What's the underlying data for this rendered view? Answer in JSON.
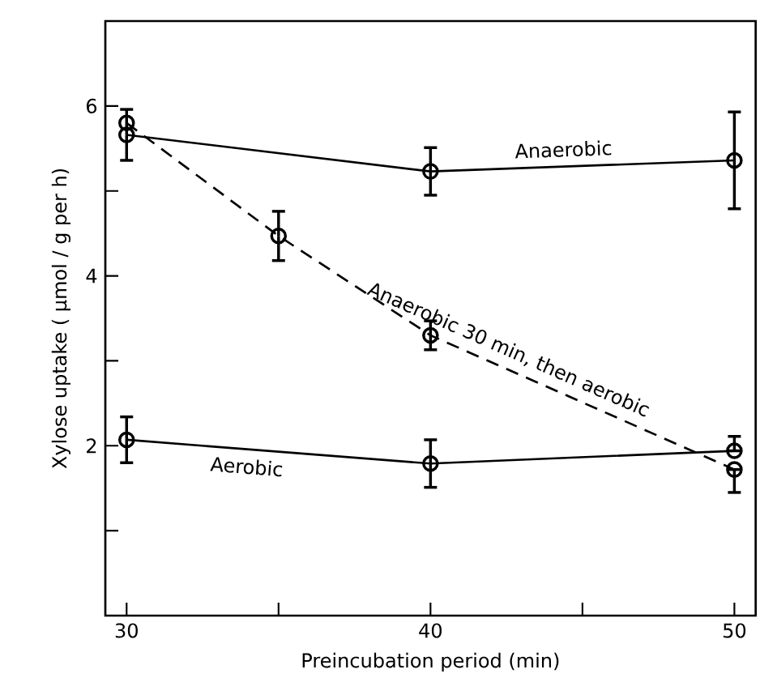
{
  "chart_data": {
    "type": "line",
    "xlabel": "Preincubation period (min)",
    "ylabel": "Xylose uptake ( μmol / g per h)",
    "x": [
      30,
      40,
      50
    ],
    "series": [
      {
        "name": "Anaerobic",
        "color": "#000000",
        "values": [
          5.66,
          5.23,
          5.36
        ],
        "errors": [
          0.3,
          0.28,
          0.57
        ],
        "line_style": "solid"
      },
      {
        "name": "Anaerobic 30 min, then aerobic",
        "color": "#000000",
        "x": [
          30,
          35,
          40,
          50
        ],
        "values": [
          5.8,
          4.47,
          3.3,
          1.72
        ],
        "errors": [
          null,
          0.29,
          0.17,
          [
            1.45,
            1.72
          ]
        ],
        "line_style": "dashed"
      },
      {
        "name": "Aerobic",
        "color": "#000000",
        "values": [
          2.07,
          1.79,
          1.94
        ],
        "errors": [
          0.27,
          0.28,
          [
            1.94,
            2.11
          ]
        ],
        "line_style": "solid"
      }
    ],
    "marker": "circle",
    "xlim": [
      29.3,
      50.7
    ],
    "ylim": [
      0,
      7
    ],
    "xticks": [
      30,
      {
        "value": 35,
        "label": null
      },
      40,
      {
        "value": 45,
        "label": null
      },
      50
    ],
    "yticks": [
      {
        "value": 1,
        "label": null
      },
      2,
      {
        "value": 3,
        "label": null
      },
      4,
      {
        "value": 5,
        "label": null
      },
      6
    ]
  }
}
